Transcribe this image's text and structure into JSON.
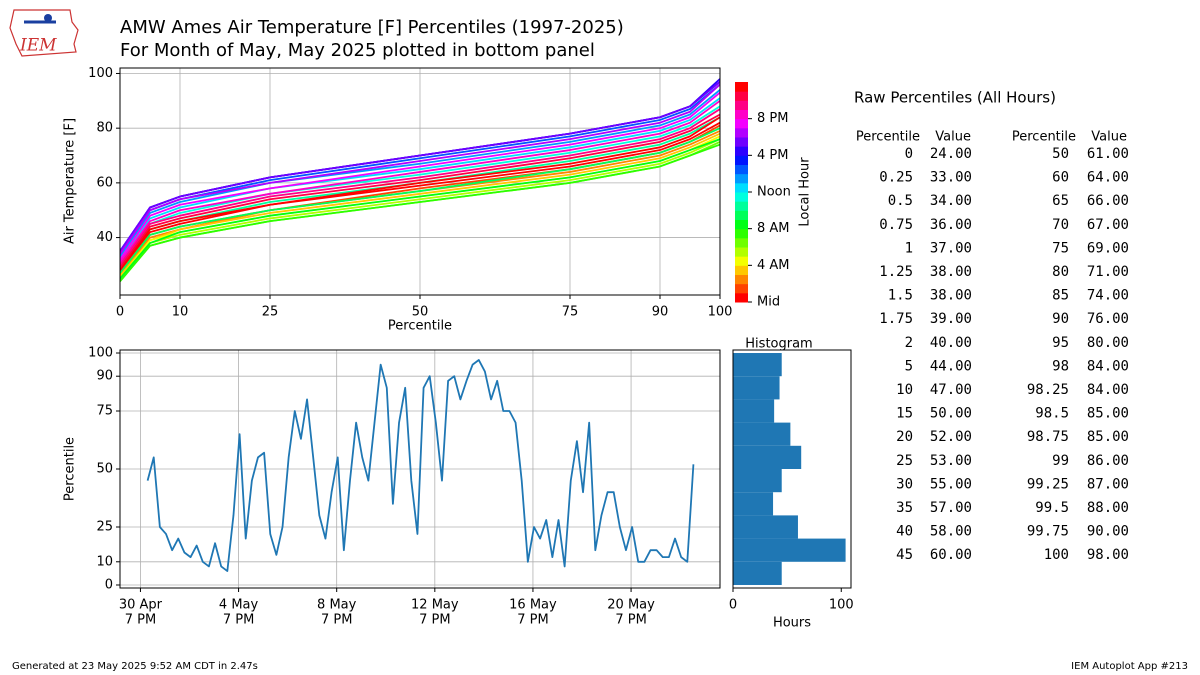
{
  "logo": "IEM",
  "chart_data": [
    {
      "type": "line",
      "title": "AMW Ames Air Temperature [F] Percentiles (1997-2025)",
      "subtitle": "For Month of May, May 2025 plotted in bottom panel",
      "xlabel": "Percentile",
      "ylabel": "Air Temperature [F]",
      "x": [
        0,
        5,
        10,
        25,
        50,
        75,
        90,
        95,
        100
      ],
      "xlim": [
        0,
        100
      ],
      "xticks": [
        0,
        10,
        25,
        50,
        75,
        90,
        100
      ],
      "ylim": [
        19,
        102
      ],
      "yticks": [
        40,
        60,
        80,
        100
      ],
      "grid": true,
      "series": [
        {
          "color": "#ff0000",
          "values": [
            28,
            42,
            45,
            52,
            59,
            66,
            72,
            76,
            82
          ]
        },
        {
          "color": "#ff4300",
          "values": [
            27,
            41,
            44,
            50,
            58,
            65,
            71,
            75,
            81
          ]
        },
        {
          "color": "#ff8500",
          "values": [
            26,
            40,
            43,
            50,
            57,
            64,
            70,
            74,
            79
          ]
        },
        {
          "color": "#ffc800",
          "values": [
            26,
            39,
            43,
            49,
            56,
            63,
            69,
            73,
            78
          ]
        },
        {
          "color": "#f4ff00",
          "values": [
            25,
            39,
            42,
            48,
            55,
            62,
            68,
            72,
            77
          ]
        },
        {
          "color": "#b2ff00",
          "values": [
            25,
            38,
            41,
            47,
            54,
            61,
            67,
            71,
            76
          ]
        },
        {
          "color": "#6fff00",
          "values": [
            24,
            37,
            40,
            46,
            53,
            60,
            66,
            70,
            75
          ]
        },
        {
          "color": "#2cff00",
          "values": [
            24,
            37,
            40,
            46,
            53,
            60,
            66,
            70,
            74
          ]
        },
        {
          "color": "#00ff16",
          "values": [
            25,
            38,
            42,
            48,
            55,
            62,
            68,
            72,
            76
          ]
        },
        {
          "color": "#00ff59",
          "values": [
            27,
            41,
            44,
            50,
            57,
            65,
            71,
            75,
            80
          ]
        },
        {
          "color": "#00ff9c",
          "values": [
            29,
            43,
            46,
            53,
            60,
            68,
            74,
            78,
            84
          ]
        },
        {
          "color": "#00ffdf",
          "values": [
            31,
            45,
            49,
            56,
            63,
            71,
            77,
            81,
            88
          ]
        },
        {
          "color": "#00ddff",
          "values": [
            32,
            47,
            51,
            58,
            65,
            73,
            79,
            83,
            91
          ]
        },
        {
          "color": "#009aff",
          "values": [
            33,
            49,
            53,
            60,
            67,
            75,
            81,
            85,
            94
          ]
        },
        {
          "color": "#0057ff",
          "values": [
            34,
            50,
            54,
            61,
            69,
            77,
            83,
            87,
            96
          ]
        },
        {
          "color": "#0014ff",
          "values": [
            35,
            51,
            55,
            62,
            70,
            78,
            84,
            88,
            97
          ]
        },
        {
          "color": "#2c00ff",
          "values": [
            35,
            51,
            55,
            62,
            70,
            78,
            84,
            88,
            98
          ]
        },
        {
          "color": "#6f00ff",
          "values": [
            35,
            51,
            55,
            62,
            70,
            78,
            84,
            88,
            97
          ]
        },
        {
          "color": "#b200ff",
          "values": [
            34,
            50,
            54,
            60,
            68,
            76,
            82,
            86,
            96
          ]
        },
        {
          "color": "#f400ff",
          "values": [
            32,
            48,
            52,
            58,
            66,
            74,
            80,
            84,
            93
          ]
        },
        {
          "color": "#ff00c8",
          "values": [
            31,
            46,
            50,
            56,
            64,
            72,
            78,
            82,
            90
          ]
        },
        {
          "color": "#ff0085",
          "values": [
            30,
            45,
            48,
            55,
            62,
            70,
            76,
            80,
            87
          ]
        },
        {
          "color": "#ff0043",
          "values": [
            29,
            44,
            47,
            54,
            61,
            69,
            75,
            79,
            85
          ]
        },
        {
          "color": "#ff0000",
          "values": [
            28,
            43,
            46,
            52,
            60,
            67,
            73,
            77,
            84
          ]
        }
      ],
      "colorbar": {
        "label": "Local Hour",
        "lim": [
          0,
          24
        ],
        "ticks": [
          {
            "value": 0,
            "label": "Mid"
          },
          {
            "value": 4,
            "label": "4 AM"
          },
          {
            "value": 8,
            "label": "8 AM"
          },
          {
            "value": 12,
            "label": "Noon"
          },
          {
            "value": 16,
            "label": "4 PM"
          },
          {
            "value": 20,
            "label": "8 PM"
          }
        ]
      }
    },
    {
      "type": "line",
      "ylabel": "Percentile",
      "x": [
        "2025-05-01T02:00",
        "2025-05-01T08:00",
        "2025-05-01T14:00",
        "2025-05-01T20:00",
        "2025-05-02T02:00",
        "2025-05-02T08:00",
        "2025-05-02T14:00",
        "2025-05-02T20:00",
        "2025-05-03T02:00",
        "2025-05-03T08:00",
        "2025-05-03T14:00",
        "2025-05-03T20:00",
        "2025-05-04T02:00",
        "2025-05-04T08:00",
        "2025-05-04T14:00",
        "2025-05-04T20:00",
        "2025-05-05T02:00",
        "2025-05-05T08:00",
        "2025-05-05T14:00",
        "2025-05-05T20:00",
        "2025-05-06T02:00",
        "2025-05-06T08:00",
        "2025-05-06T14:00",
        "2025-05-06T20:00",
        "2025-05-07T02:00",
        "2025-05-07T08:00",
        "2025-05-07T14:00",
        "2025-05-07T20:00",
        "2025-05-08T02:00",
        "2025-05-08T08:00",
        "2025-05-08T14:00",
        "2025-05-08T20:00",
        "2025-05-09T02:00",
        "2025-05-09T08:00",
        "2025-05-09T14:00",
        "2025-05-09T20:00",
        "2025-05-10T02:00",
        "2025-05-10T08:00",
        "2025-05-10T14:00",
        "2025-05-10T20:00",
        "2025-05-11T02:00",
        "2025-05-11T08:00",
        "2025-05-11T14:00",
        "2025-05-11T20:00",
        "2025-05-12T02:00",
        "2025-05-12T08:00",
        "2025-05-12T14:00",
        "2025-05-12T20:00",
        "2025-05-13T02:00",
        "2025-05-13T08:00",
        "2025-05-13T14:00",
        "2025-05-13T20:00",
        "2025-05-14T02:00",
        "2025-05-14T08:00",
        "2025-05-14T14:00",
        "2025-05-14T20:00",
        "2025-05-15T02:00",
        "2025-05-15T08:00",
        "2025-05-15T14:00",
        "2025-05-15T20:00",
        "2025-05-16T02:00",
        "2025-05-16T08:00",
        "2025-05-16T14:00",
        "2025-05-16T20:00",
        "2025-05-17T02:00",
        "2025-05-17T08:00",
        "2025-05-17T14:00",
        "2025-05-17T20:00",
        "2025-05-18T02:00",
        "2025-05-18T08:00",
        "2025-05-18T14:00",
        "2025-05-18T20:00",
        "2025-05-19T02:00",
        "2025-05-19T08:00",
        "2025-05-19T14:00",
        "2025-05-19T20:00",
        "2025-05-20T02:00",
        "2025-05-20T08:00",
        "2025-05-20T14:00",
        "2025-05-20T20:00",
        "2025-05-21T02:00",
        "2025-05-21T08:00",
        "2025-05-21T14:00",
        "2025-05-21T20:00",
        "2025-05-22T02:00",
        "2025-05-22T08:00",
        "2025-05-22T14:00",
        "2025-05-22T20:00",
        "2025-05-23T02:00",
        "2025-05-23T08:00"
      ],
      "xlim": [
        "2025-04-29T23:00",
        "2025-05-24T10:00"
      ],
      "xticks": [
        {
          "value": "2025-04-30T19:00",
          "label": [
            "30 Apr",
            "7 PM"
          ]
        },
        {
          "value": "2025-05-04T19:00",
          "label": [
            "4 May",
            "7 PM"
          ]
        },
        {
          "value": "2025-05-08T19:00",
          "label": [
            "8 May",
            "7 PM"
          ]
        },
        {
          "value": "2025-05-12T19:00",
          "label": [
            "12 May",
            "7 PM"
          ]
        },
        {
          "value": "2025-05-16T19:00",
          "label": [
            "16 May",
            "7 PM"
          ]
        },
        {
          "value": "2025-05-20T19:00",
          "label": [
            "20 May",
            "7 PM"
          ]
        }
      ],
      "ylim": [
        -1.3,
        101.3
      ],
      "yticks": [
        0,
        10,
        25,
        50,
        75,
        90,
        100
      ],
      "grid": true,
      "series": [
        {
          "color": "#1f77b4",
          "values": [
            45,
            55,
            25,
            22,
            15,
            20,
            14,
            12,
            17,
            10,
            8,
            18,
            8,
            6,
            30,
            65,
            20,
            45,
            55,
            57,
            22,
            13,
            25,
            55,
            75,
            63,
            80,
            55,
            30,
            20,
            40,
            55,
            15,
            45,
            70,
            55,
            45,
            70,
            95,
            85,
            35,
            70,
            85,
            45,
            22,
            85,
            90,
            70,
            45,
            88,
            90,
            80,
            88,
            95,
            97,
            92,
            80,
            88,
            75,
            75,
            70,
            45,
            10,
            25,
            20,
            28,
            12,
            28,
            8,
            45,
            62,
            40,
            70,
            15,
            30,
            40,
            40,
            25,
            15,
            25,
            10,
            10,
            15,
            15,
            12,
            12,
            20,
            12,
            10,
            52
          ]
        }
      ]
    },
    {
      "type": "histogram",
      "orientation": "horizontal",
      "title": "Histogram",
      "xlabel": "Hours",
      "color": "#1f77b4",
      "bins": [
        0,
        10,
        20,
        30,
        40,
        50,
        60,
        70,
        80,
        90,
        100
      ],
      "counts": [
        45,
        104,
        60,
        37,
        45,
        63,
        53,
        38,
        43,
        45
      ],
      "xlim": [
        0,
        109
      ],
      "xticks": [
        0,
        100
      ],
      "ylim": [
        -1.3,
        101.3
      ]
    }
  ],
  "table": {
    "title": "Raw Percentiles (All Hours)",
    "header": [
      "Percentile",
      "Value"
    ],
    "left": [
      [
        "0",
        "24.00"
      ],
      [
        "0.25",
        "33.00"
      ],
      [
        "0.5",
        "34.00"
      ],
      [
        "0.75",
        "36.00"
      ],
      [
        "1",
        "37.00"
      ],
      [
        "1.25",
        "38.00"
      ],
      [
        "1.5",
        "38.00"
      ],
      [
        "1.75",
        "39.00"
      ],
      [
        "2",
        "40.00"
      ],
      [
        "5",
        "44.00"
      ],
      [
        "10",
        "47.00"
      ],
      [
        "15",
        "50.00"
      ],
      [
        "20",
        "52.00"
      ],
      [
        "25",
        "53.00"
      ],
      [
        "30",
        "55.00"
      ],
      [
        "35",
        "57.00"
      ],
      [
        "40",
        "58.00"
      ],
      [
        "45",
        "60.00"
      ]
    ],
    "right": [
      [
        "50",
        "61.00"
      ],
      [
        "60",
        "64.00"
      ],
      [
        "65",
        "66.00"
      ],
      [
        "70",
        "67.00"
      ],
      [
        "75",
        "69.00"
      ],
      [
        "80",
        "71.00"
      ],
      [
        "85",
        "74.00"
      ],
      [
        "90",
        "76.00"
      ],
      [
        "95",
        "80.00"
      ],
      [
        "98",
        "84.00"
      ],
      [
        "98.25",
        "84.00"
      ],
      [
        "98.5",
        "85.00"
      ],
      [
        "98.75",
        "85.00"
      ],
      [
        "99",
        "86.00"
      ],
      [
        "99.25",
        "87.00"
      ],
      [
        "99.5",
        "88.00"
      ],
      [
        "99.75",
        "90.00"
      ],
      [
        "100",
        "98.00"
      ]
    ]
  },
  "footer": {
    "left": "Generated at 23 May 2025 9:52 AM CDT in 2.47s",
    "right": "IEM Autoplot App #213"
  }
}
